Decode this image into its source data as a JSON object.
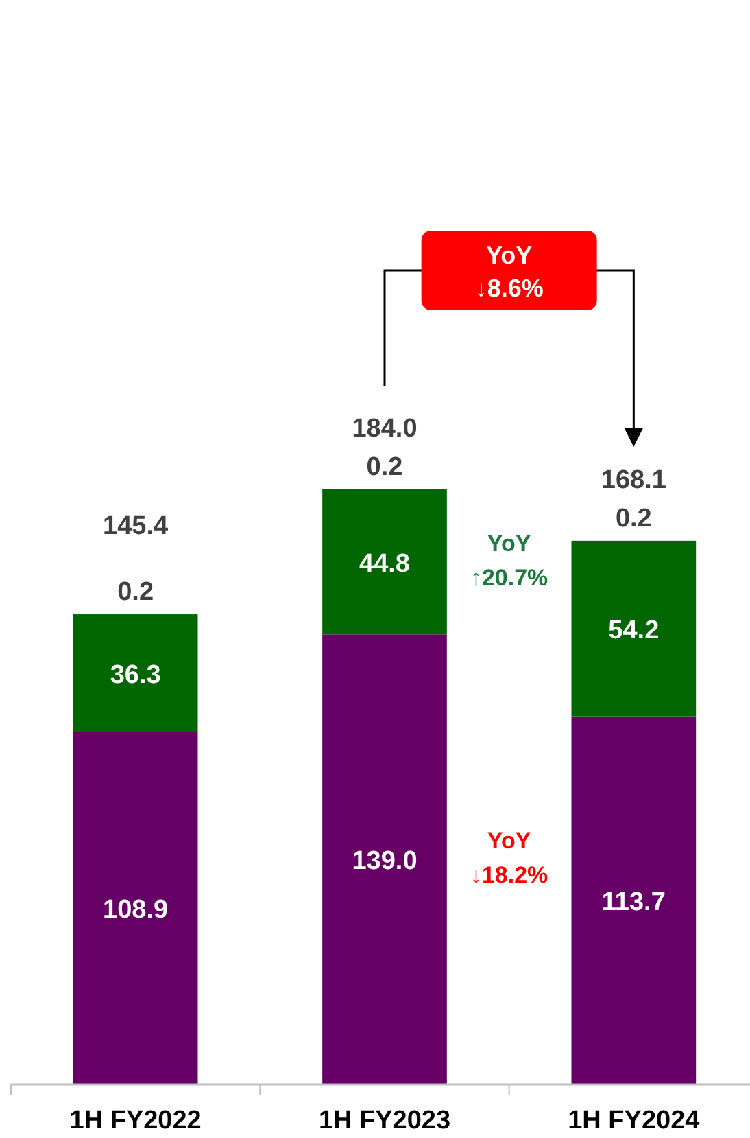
{
  "chart_data": {
    "type": "bar",
    "stacked": true,
    "data_labels": true,
    "categories": [
      "1H FY2022",
      "1H FY2023",
      "1H FY2024"
    ],
    "series": [
      {
        "color": "#660066",
        "values": [
          108.9,
          139.0,
          113.7
        ],
        "value_labels": [
          "108.9",
          "139.0",
          "113.7"
        ]
      },
      {
        "color": "#006600",
        "values": [
          36.3,
          44.8,
          54.2
        ]
      },
      {
        "color": "#d9d9d9",
        "values": [
          0.2,
          0.2,
          0.2
        ]
      }
    ],
    "totals": [
      "145.4",
      "184.0",
      "168.1"
    ],
    "annotations": [
      "YoY ↓8.6%",
      "YoY ↑20.7%",
      "YoY ↓18.2%"
    ]
  }
}
